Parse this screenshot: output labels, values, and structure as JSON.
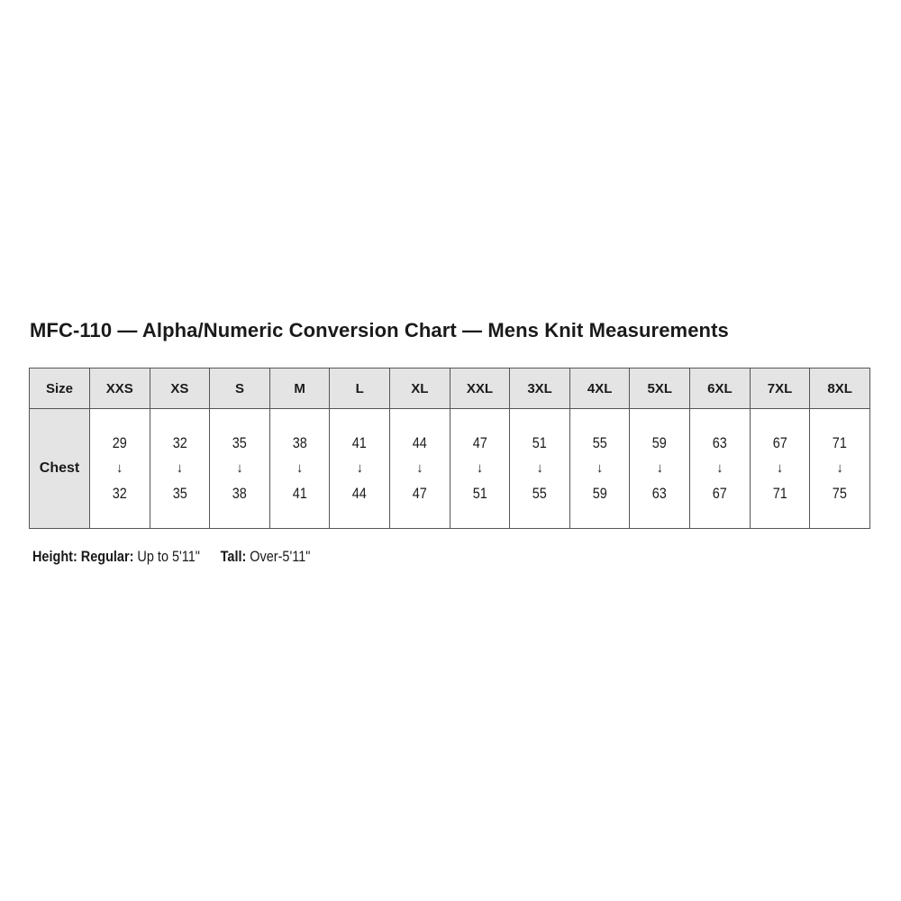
{
  "title": "MFC-110 — Alpha/Numeric Conversion Chart — Mens Knit Measurements",
  "table": {
    "header_label": "Size",
    "row_label": "Chest",
    "arrow_icon": "down-arrow-icon",
    "sizes": [
      "XXS",
      "XS",
      "S",
      "M",
      "L",
      "XL",
      "XXL",
      "3XL",
      "4XL",
      "5XL",
      "6XL",
      "7XL",
      "8XL"
    ],
    "chest": [
      {
        "from": "29",
        "to": "32"
      },
      {
        "from": "32",
        "to": "35"
      },
      {
        "from": "35",
        "to": "38"
      },
      {
        "from": "38",
        "to": "41"
      },
      {
        "from": "41",
        "to": "44"
      },
      {
        "from": "44",
        "to": "47"
      },
      {
        "from": "47",
        "to": "51"
      },
      {
        "from": "51",
        "to": "55"
      },
      {
        "from": "55",
        "to": "59"
      },
      {
        "from": "59",
        "to": "63"
      },
      {
        "from": "63",
        "to": "67"
      },
      {
        "from": "67",
        "to": "71"
      },
      {
        "from": "71",
        "to": "75"
      }
    ],
    "header_bg": "#e4e4e4"
  },
  "footer": {
    "height_label": "Height:",
    "regular_label": "Regular:",
    "regular_value": "Up to 5'11\"",
    "tall_label": "Tall:",
    "tall_value": "Over-5'11\""
  }
}
